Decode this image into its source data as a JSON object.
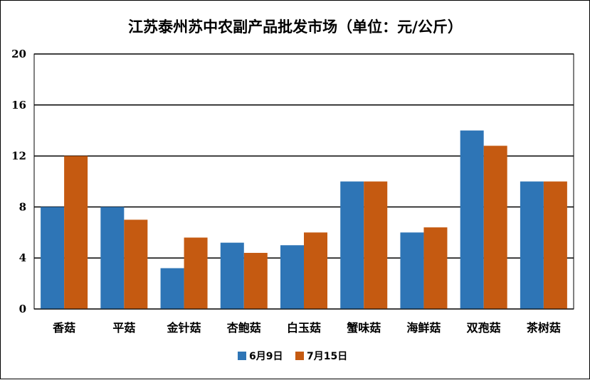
{
  "chart_data": {
    "type": "bar",
    "title": "江苏泰州苏中农副产品批发市场（单位：元/公斤）",
    "categories": [
      "香菇",
      "平菇",
      "金针菇",
      "杏鲍菇",
      "白玉菇",
      "蟹味菇",
      "海鲜菇",
      "双孢菇",
      "茶树菇"
    ],
    "series": [
      {
        "name": "6月9日",
        "color": "#2E75B6",
        "values": [
          8,
          8,
          3.2,
          5.2,
          5,
          10,
          6,
          14,
          10
        ]
      },
      {
        "name": "7月15日",
        "color": "#C55A11",
        "values": [
          12,
          7,
          5.6,
          4.4,
          6,
          10,
          6.4,
          12.8,
          10
        ]
      }
    ],
    "ylim": [
      0,
      20
    ],
    "yticks": [
      0,
      4,
      8,
      12,
      16,
      20
    ],
    "grid": true,
    "legend": "bottom"
  }
}
